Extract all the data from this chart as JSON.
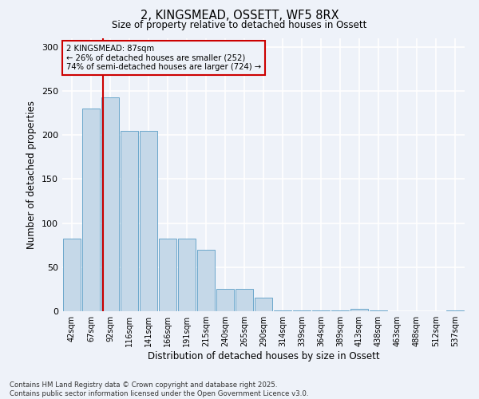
{
  "title_line1": "2, KINGSMEAD, OSSETT, WF5 8RX",
  "title_line2": "Size of property relative to detached houses in Ossett",
  "xlabel": "Distribution of detached houses by size in Ossett",
  "ylabel": "Number of detached properties",
  "categories": [
    "42sqm",
    "67sqm",
    "92sqm",
    "116sqm",
    "141sqm",
    "166sqm",
    "191sqm",
    "215sqm",
    "240sqm",
    "265sqm",
    "290sqm",
    "314sqm",
    "339sqm",
    "364sqm",
    "389sqm",
    "413sqm",
    "438sqm",
    "463sqm",
    "488sqm",
    "512sqm",
    "537sqm"
  ],
  "values": [
    82,
    230,
    243,
    205,
    205,
    82,
    82,
    70,
    25,
    25,
    15,
    1,
    1,
    1,
    1,
    3,
    1,
    0,
    0,
    0,
    1
  ],
  "bar_color": "#c5d8e8",
  "bar_edge_color": "#5a9dc5",
  "highlight_color": "#cc0000",
  "annotation_box_color": "#cc0000",
  "annotation_text_line1": "2 KINGSMEAD: 87sqm",
  "annotation_text_line2": "← 26% of detached houses are smaller (252)",
  "annotation_text_line3": "74% of semi-detached houses are larger (724) →",
  "ylim": [
    0,
    310
  ],
  "yticks": [
    0,
    50,
    100,
    150,
    200,
    250,
    300
  ],
  "background_color": "#eef2f9",
  "grid_color": "#ffffff",
  "footer_line1": "Contains HM Land Registry data © Crown copyright and database right 2025.",
  "footer_line2": "Contains public sector information licensed under the Open Government Licence v3.0."
}
